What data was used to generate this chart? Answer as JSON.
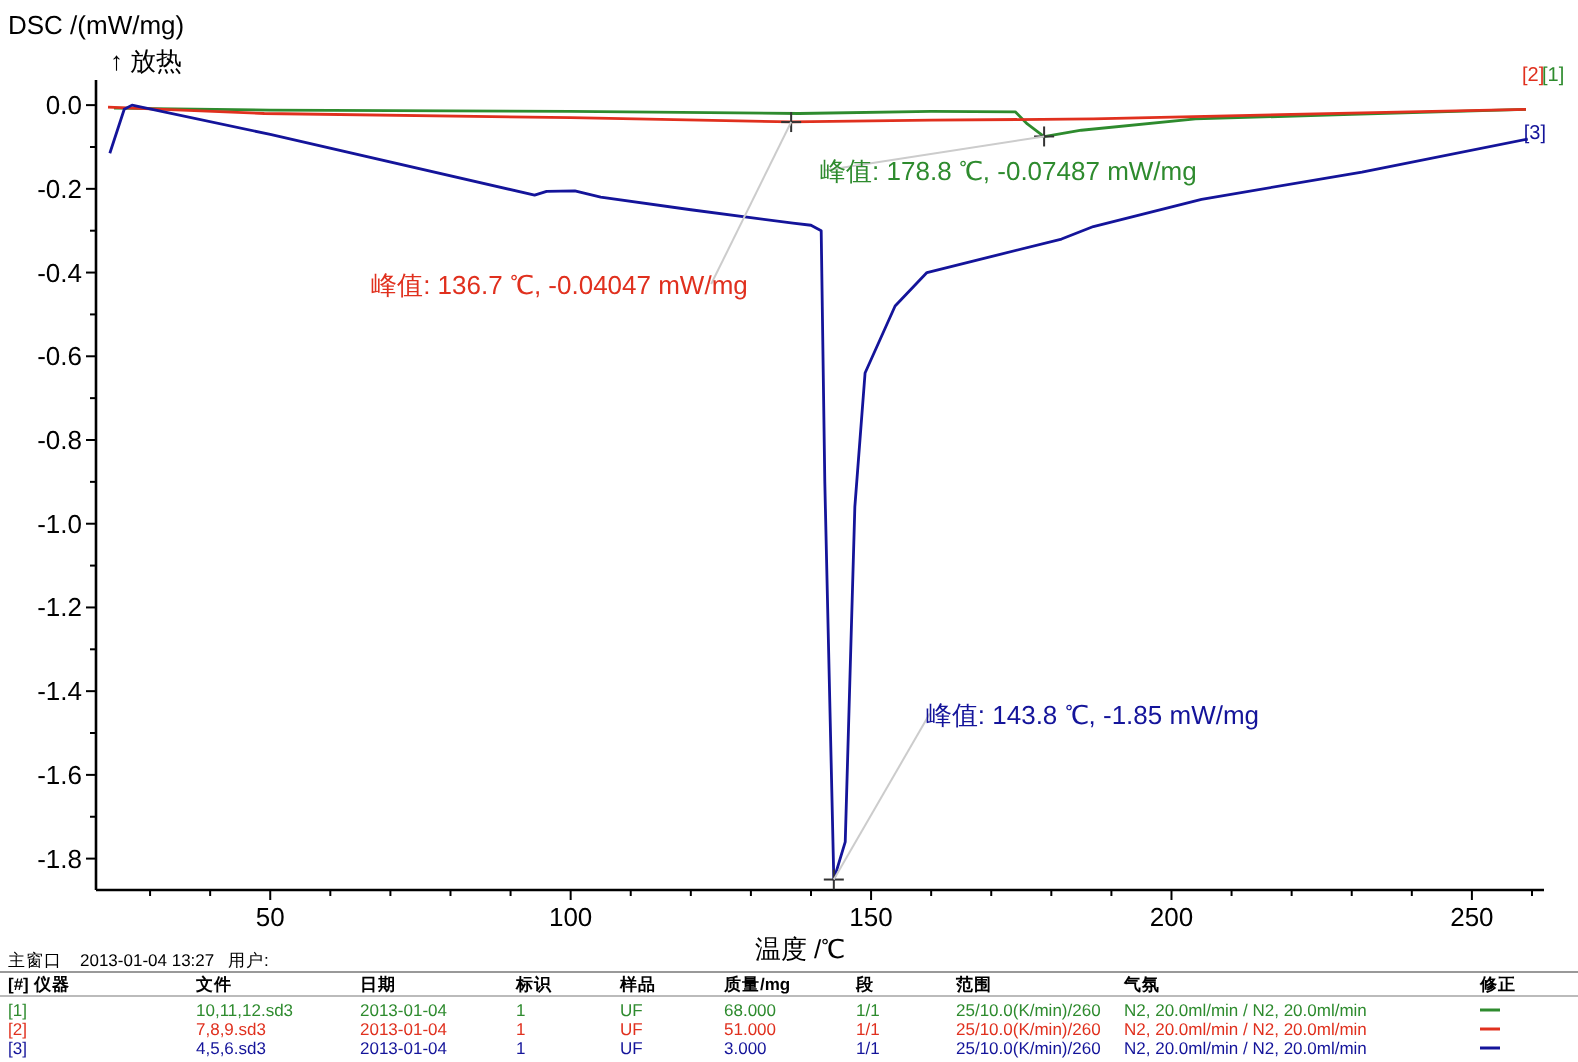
{
  "chart_data": {
    "type": "line",
    "xlabel": "温度 /℃",
    "ylabel": "DSC /(mW/mg)",
    "xlim": [
      21,
      262
    ],
    "ylim": [
      -1.875,
      0.06
    ],
    "xticks": [
      {
        "value": 30,
        "label": null
      },
      {
        "value": 40,
        "label": null
      },
      50,
      {
        "value": 60,
        "label": null
      },
      {
        "value": 70,
        "label": null
      },
      {
        "value": 80,
        "label": null
      },
      {
        "value": 90,
        "label": null
      },
      100,
      {
        "value": 110,
        "label": null
      },
      {
        "value": 120,
        "label": null
      },
      {
        "value": 130,
        "label": null
      },
      {
        "value": 140,
        "label": null
      },
      150,
      {
        "value": 160,
        "label": null
      },
      {
        "value": 170,
        "label": null
      },
      {
        "value": 180,
        "label": null
      },
      {
        "value": 190,
        "label": null
      },
      200,
      {
        "value": 210,
        "label": null
      },
      {
        "value": 220,
        "label": null
      },
      {
        "value": 230,
        "label": null
      },
      {
        "value": 240,
        "label": null
      },
      250,
      {
        "value": 260,
        "label": null
      }
    ],
    "yticks": [
      {
        "value": 0,
        "label": "0.0"
      },
      {
        "value": -0.1,
        "label": null
      },
      {
        "value": -0.2,
        "label": "-0.2"
      },
      {
        "value": -0.3,
        "label": null
      },
      {
        "value": -0.4,
        "label": "-0.4"
      },
      {
        "value": -0.5,
        "label": null
      },
      {
        "value": -0.6,
        "label": "-0.6"
      },
      {
        "value": -0.7,
        "label": null
      },
      {
        "value": -0.8,
        "label": "-0.8"
      },
      {
        "value": -0.9,
        "label": null
      },
      {
        "value": -1.0,
        "label": "-1.0"
      },
      {
        "value": -1.1,
        "label": null
      },
      {
        "value": -1.2,
        "label": "-1.2"
      },
      {
        "value": -1.3,
        "label": null
      },
      {
        "value": -1.4,
        "label": "-1.4"
      },
      {
        "value": -1.5,
        "label": null
      },
      {
        "value": -1.6,
        "label": "-1.6"
      },
      {
        "value": -1.7,
        "label": null
      },
      {
        "value": -1.8,
        "label": "-1.8"
      }
    ],
    "grid": false,
    "series": [
      {
        "name": "[1]",
        "color": "#2e8b2e",
        "x": [
          24,
          50,
          100,
          138,
          160,
          174,
          176,
          178.8,
          185,
          204,
          230,
          259
        ],
        "values": [
          -0.007,
          -0.012,
          -0.015,
          -0.02,
          -0.015,
          -0.016,
          -0.045,
          -0.075,
          -0.06,
          -0.033,
          -0.022,
          -0.01
        ]
      },
      {
        "name": "[2]",
        "color": "#e0301e",
        "x": [
          23,
          49,
          100,
          136.7,
          160,
          187,
          220,
          259
        ],
        "values": [
          -0.005,
          -0.02,
          -0.03,
          -0.04,
          -0.036,
          -0.033,
          -0.022,
          -0.01
        ]
      },
      {
        "name": "[3]",
        "color": "#14149a",
        "x": [
          23.3,
          25.7,
          27,
          50,
          94,
          96,
          100.7,
          105,
          120,
          137,
          140,
          141.7,
          142.3,
          143.8,
          145.7,
          147.3,
          149,
          154,
          159.3,
          181.7,
          187,
          205,
          231.7,
          259.3
        ],
        "values": [
          -0.115,
          -0.01,
          0,
          -0.07,
          -0.215,
          -0.206,
          -0.205,
          -0.22,
          -0.25,
          -0.282,
          -0.287,
          -0.3,
          -0.9,
          -1.85,
          -1.76,
          -0.96,
          -0.64,
          -0.48,
          -0.4,
          -0.32,
          -0.29,
          -0.225,
          -0.16,
          -0.081
        ]
      }
    ],
    "annotations": [
      "↑ 放热",
      {
        "text": "峰值: 178.8 ℃, -0.07487 mW/mg",
        "x": 178.8,
        "y": -0.07487
      },
      {
        "text": "峰值: 136.7 ℃, -0.04047 mW/mg",
        "x": 136.7,
        "y": -0.04047
      },
      {
        "text": "峰值: 143.8 ℃, -1.85 mW/mg",
        "x": 143.8,
        "y": -1.85
      },
      "主窗口",
      "2013-01-04 13:27",
      "用户:",
      "[#] 仪器",
      "文件",
      "日期",
      "标识",
      "样品",
      "质量/mg",
      "段",
      "范围",
      "气氛",
      "修正",
      "[1]",
      "10,11,12.sd3",
      "2013-01-04",
      "1",
      "UF",
      "68.000",
      "1/1",
      "25/10.0(K/min)/260",
      "N2, 20.0ml/min / N2, 20.0ml/min",
      "[2]",
      "7,8,9.sd3",
      "2013-01-04",
      "1",
      "UF",
      "51.000",
      "1/1",
      "25/10.0(K/min)/260",
      "N2, 20.0ml/min / N2, 20.0ml/min",
      "[3]",
      "4,5,6.sd3",
      "2013-01-04",
      "1",
      "UF",
      "3.000",
      "1/1",
      "25/10.0(K/min)/260",
      "N2, 20.0ml/min / N2, 20.0ml/min"
    ]
  }
}
